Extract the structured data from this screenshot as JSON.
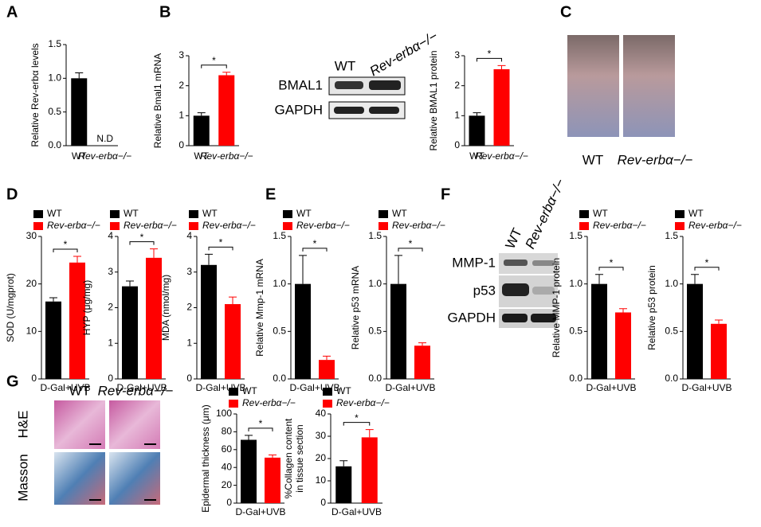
{
  "panel_labels": [
    "A",
    "B",
    "C",
    "D",
    "E",
    "F",
    "G"
  ],
  "blot_b": {
    "columns": [
      "WT",
      "Rev-erbα−/−"
    ],
    "rows": [
      "BMAL1",
      "GAPDH"
    ]
  },
  "photos_c": {
    "labels": [
      "WT",
      "Rev-erbα−/−"
    ]
  },
  "blot_f": {
    "columns": [
      "WT",
      "Rev-erbα−/−"
    ],
    "rows": [
      "MMP-1",
      "p53",
      "GAPDH"
    ]
  },
  "histology_g": {
    "columns": [
      "WT",
      "Rev-erbα−/−"
    ],
    "rows": [
      "H&E",
      "Masson"
    ]
  },
  "chart_data": [
    {
      "type": "bar",
      "ylabel": "Relative Rev-erbα levels",
      "categories": [
        "WT",
        "Rev-erbα−/−"
      ],
      "values": [
        1.0,
        null
      ],
      "errors": [
        0.08,
        null
      ],
      "colors": [
        "#000000",
        "#000000"
      ],
      "annotation": "N.D",
      "ylim": [
        0,
        1.5
      ],
      "yticks": [
        {
          "value": 0,
          "label": "0.0"
        },
        0.5,
        {
          "value": 1,
          "label": "1.0"
        },
        1.5
      ]
    },
    {
      "type": "bar",
      "ylabel": "Relative Bmal1 mRNA",
      "categories": [
        "WT",
        "Rev-erbα−/−"
      ],
      "values": [
        1.0,
        2.35
      ],
      "errors": [
        0.1,
        0.1
      ],
      "colors": [
        "#000000",
        "#ff0000"
      ],
      "significance": "*",
      "ylim": [
        0,
        3
      ],
      "yticks": [
        0,
        1,
        2,
        3
      ]
    },
    {
      "type": "bar",
      "ylabel": "Relative BMAL1 protein",
      "categories": [
        "WT",
        "Rev-erbα−/−"
      ],
      "values": [
        1.0,
        2.55
      ],
      "errors": [
        0.1,
        0.12
      ],
      "colors": [
        "#000000",
        "#ff0000"
      ],
      "significance": "*",
      "ylim": [
        0,
        3
      ],
      "yticks": [
        0,
        1,
        2,
        3
      ]
    },
    {
      "type": "bar",
      "ylabel": "SOD (U/mgprot)",
      "xlabel": "D-Gal+UVB",
      "series": [
        {
          "name": "WT",
          "color": "#000000",
          "values": [
            16.3
          ],
          "errors": [
            0.8
          ]
        },
        {
          "name": "Rev-erbα−/−",
          "color": "#ff0000",
          "values": [
            24.5
          ],
          "errors": [
            1.3
          ]
        }
      ],
      "significance": "*",
      "ylim": [
        0,
        30
      ],
      "yticks": [
        0,
        10,
        20,
        30
      ]
    },
    {
      "type": "bar",
      "ylabel": "HYP (μg/mg)",
      "xlabel": "D-Gal+UVB",
      "series": [
        {
          "name": "WT",
          "color": "#000000",
          "values": [
            2.6
          ],
          "errors": [
            0.15
          ]
        },
        {
          "name": "Rev-erbα−/−",
          "color": "#ff0000",
          "values": [
            3.4
          ],
          "errors": [
            0.25
          ]
        }
      ],
      "significance": "*",
      "ylim": [
        0,
        4
      ],
      "yticks": [
        0,
        1,
        2,
        3,
        4
      ]
    },
    {
      "type": "bar",
      "ylabel": "MDA (nmol/mg)",
      "xlabel": "D-Gal+UVB",
      "series": [
        {
          "name": "WT",
          "color": "#000000",
          "values": [
            3.2
          ],
          "errors": [
            0.3
          ]
        },
        {
          "name": "Rev-erbα−/−",
          "color": "#ff0000",
          "values": [
            2.1
          ],
          "errors": [
            0.2
          ]
        }
      ],
      "significance": "*",
      "ylim": [
        0,
        4
      ],
      "yticks": [
        0,
        1,
        2,
        3,
        4
      ]
    },
    {
      "type": "bar",
      "ylabel": "Relative Mmp-1 mRNA",
      "xlabel": "D-Gal+UVB",
      "series": [
        {
          "name": "WT",
          "color": "#000000",
          "values": [
            1.0
          ],
          "errors": [
            0.3
          ]
        },
        {
          "name": "Rev-erbα−/−",
          "color": "#ff0000",
          "values": [
            0.2
          ],
          "errors": [
            0.04
          ]
        }
      ],
      "significance": "*",
      "ylim": [
        0,
        1.5
      ],
      "yticks": [
        {
          "value": 0,
          "label": "0.0"
        },
        0.5,
        {
          "value": 1,
          "label": "1.0"
        },
        1.5
      ]
    },
    {
      "type": "bar",
      "ylabel": "Relative p53 mRNA",
      "xlabel": "D-Gal+UVB",
      "series": [
        {
          "name": "WT",
          "color": "#000000",
          "values": [
            1.0
          ],
          "errors": [
            0.3
          ]
        },
        {
          "name": "Rev-erbα−/−",
          "color": "#ff0000",
          "values": [
            0.35
          ],
          "errors": [
            0.03
          ]
        }
      ],
      "significance": "*",
      "ylim": [
        0,
        1.5
      ],
      "yticks": [
        {
          "value": 0,
          "label": "0.0"
        },
        0.5,
        {
          "value": 1,
          "label": "1.0"
        },
        1.5
      ]
    },
    {
      "type": "bar",
      "ylabel": "Relative MMP-1 protein",
      "xlabel": "D-Gal+UVB",
      "series": [
        {
          "name": "WT",
          "color": "#000000",
          "values": [
            1.0
          ],
          "errors": [
            0.1
          ]
        },
        {
          "name": "Rev-erbα−/−",
          "color": "#ff0000",
          "values": [
            0.7
          ],
          "errors": [
            0.04
          ]
        }
      ],
      "significance": "*",
      "ylim": [
        0,
        1.5
      ],
      "yticks": [
        {
          "value": 0,
          "label": "0.0"
        },
        0.5,
        {
          "value": 1,
          "label": "1.0"
        },
        1.5
      ]
    },
    {
      "type": "bar",
      "ylabel": "Relative p53 protein",
      "xlabel": "D-Gal+UVB",
      "series": [
        {
          "name": "WT",
          "color": "#000000",
          "values": [
            1.0
          ],
          "errors": [
            0.1
          ]
        },
        {
          "name": "Rev-erbα−/−",
          "color": "#ff0000",
          "values": [
            0.58
          ],
          "errors": [
            0.04
          ]
        }
      ],
      "significance": "*",
      "ylim": [
        0,
        1.5
      ],
      "yticks": [
        {
          "value": 0,
          "label": "0.0"
        },
        0.5,
        {
          "value": 1,
          "label": "1.0"
        },
        1.5
      ]
    },
    {
      "type": "bar",
      "ylabel": "Epidermal thickness (μm)",
      "xlabel": "D-Gal+UVB",
      "series": [
        {
          "name": "WT",
          "color": "#000000",
          "values": [
            71
          ],
          "errors": [
            5
          ]
        },
        {
          "name": "Rev-erbα−/−",
          "color": "#ff0000",
          "values": [
            51
          ],
          "errors": [
            3
          ]
        }
      ],
      "significance": "*",
      "ylim": [
        0,
        100
      ],
      "yticks": [
        0,
        20,
        40,
        60,
        80,
        100
      ]
    },
    {
      "type": "bar",
      "ylabel": [
        "%Collagen content",
        "in tissue section"
      ],
      "xlabel": "D-Gal+UVB",
      "series": [
        {
          "name": "WT",
          "color": "#000000",
          "values": [
            16.5
          ],
          "errors": [
            2.5
          ]
        },
        {
          "name": "Rev-erbα−/−",
          "color": "#ff0000",
          "values": [
            29.5
          ],
          "errors": [
            3.5
          ]
        }
      ],
      "significance": "*",
      "ylim": [
        0,
        40
      ],
      "yticks": [
        0,
        10,
        20,
        30,
        40
      ]
    }
  ]
}
